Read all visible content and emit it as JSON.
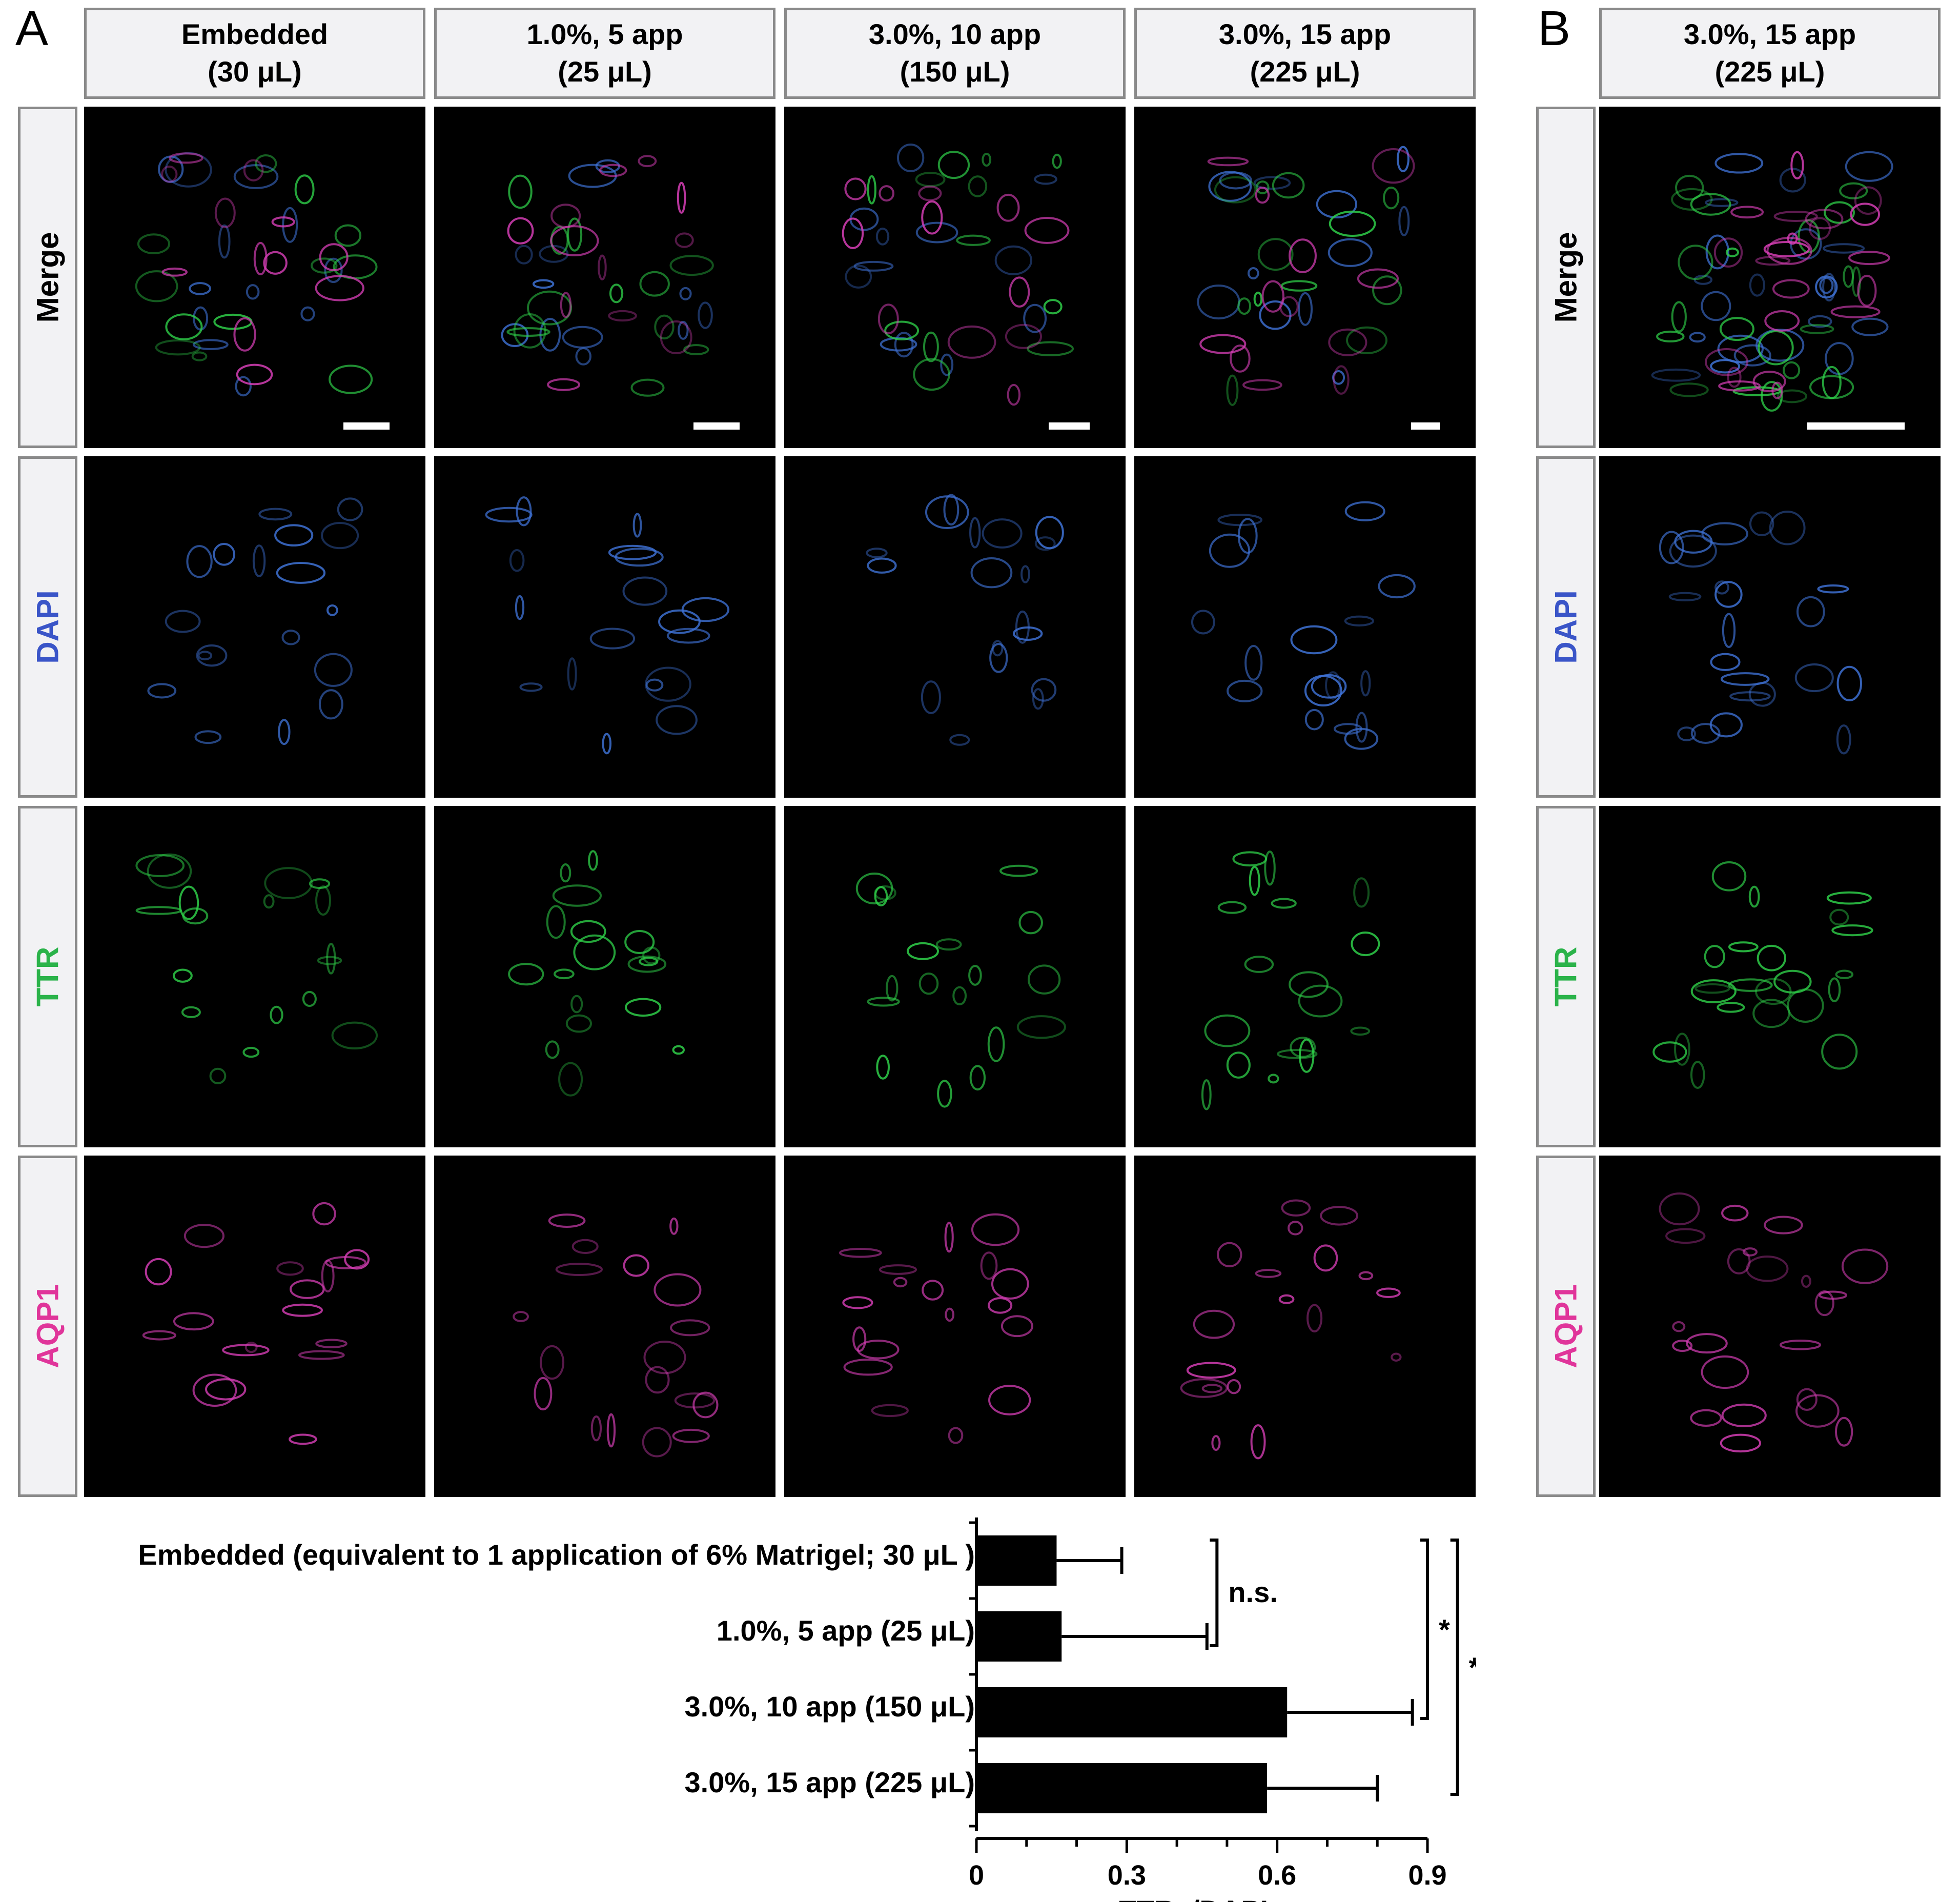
{
  "panel_a": {
    "letter": "A",
    "columns": [
      {
        "line1": "Embedded",
        "line2": "(30 μL)"
      },
      {
        "line1": "1.0%, 5 app",
        "line2": "(25 μL)"
      },
      {
        "line1": "3.0%, 10 app",
        "line2": "(150 μL)"
      },
      {
        "line1": "3.0%, 15 app",
        "line2": "(225 μL)"
      }
    ],
    "rows": [
      {
        "label": "Merge",
        "color": "#000000"
      },
      {
        "label": "DAPI",
        "color": "#3a55c8"
      },
      {
        "label": "TTR",
        "color": "#2bb34a"
      },
      {
        "label": "AQP1",
        "color": "#e0359a"
      }
    ]
  },
  "panel_b": {
    "letter": "B",
    "column": {
      "line1": "3.0%, 15 app",
      "line2": "(225 μL)"
    },
    "rows": [
      {
        "label": "Merge",
        "color": "#000000"
      },
      {
        "label": "DAPI",
        "color": "#3a55c8"
      },
      {
        "label": "TTR",
        "color": "#2bb34a"
      },
      {
        "label": "AQP1",
        "color": "#e0359a"
      }
    ]
  },
  "channel_colors": {
    "dapi": "#3f73d8",
    "ttr": "#2fd24a",
    "aqp1": "#d93fb8"
  },
  "chart_data": {
    "type": "bar",
    "orientation": "horizontal",
    "categories": [
      "Embedded (equivalent to 1 application of 6% Matrigel; 30 μL )",
      "1.0%, 5 app (25 μL)",
      "3.0%, 10 app (150 μL)",
      "3.0%, 15 app (225 μL)"
    ],
    "values": [
      0.16,
      0.17,
      0.62,
      0.58
    ],
    "errors": [
      0.13,
      0.29,
      0.25,
      0.22
    ],
    "xlabel": "TTR+/DAPI+",
    "xlim": [
      0,
      0.9
    ],
    "xticks": [
      "0",
      "0.3",
      "0.6",
      "0.9"
    ],
    "bar_color": "#000000",
    "significance": [
      {
        "groups": [
          0,
          1
        ],
        "label": "n.s."
      },
      {
        "groups": [
          0,
          2
        ],
        "label": "*"
      },
      {
        "groups": [
          0,
          3
        ],
        "label": "*"
      }
    ]
  }
}
